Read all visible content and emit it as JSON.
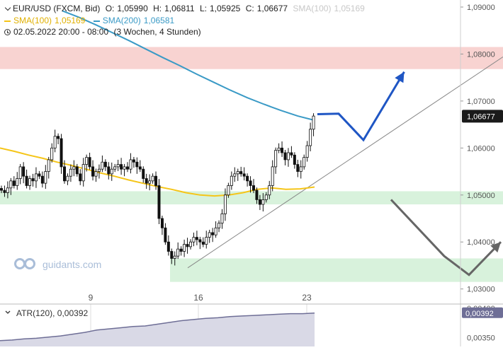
{
  "legend": {
    "symbol": "EUR/USD (FXCM, Bid)",
    "open_label": "O:",
    "open": "1,05990",
    "high_label": "H:",
    "high": "1,06811",
    "low_label": "L:",
    "low": "1,05925",
    "close_label": "C:",
    "close": "1,06677",
    "sma100_faded": "SMA(100)",
    "sma100_faded_value": "1,05169",
    "sma100_label": "SMA(100)",
    "sma100_value": "1,05169",
    "sma200_label": "SMA(200)",
    "sma200_value": "1,06581",
    "range": "02.05.2022 20:00 - 08:00",
    "duration": "(3 Wochen, 4 Stunden)"
  },
  "logo_text": "guidants.com",
  "colors": {
    "sma100": "#f5c518",
    "sma200": "#3a9ac6",
    "bull_arrow": "#1f56c4",
    "bear_arrow": "#666666",
    "resistance_zone": "#f8d3d1",
    "support_zone": "#d8f2dc",
    "candle": "#111111",
    "atr": "#6e6e96"
  },
  "icons": {
    "collapse": "chevron-down-icon",
    "time": "clock-icon",
    "logo": "guidants-logo-icon"
  },
  "chart_data": [
    {
      "type": "candlestick",
      "title": "EUR/USD (FXCM, Bid)",
      "x_tick_labels": [
        "9",
        "16",
        "23"
      ],
      "y_tick_labels": [
        "1,09000",
        "1,08000",
        "1,07000",
        "1,06000",
        "1,05000",
        "1,04000",
        "1,03000"
      ],
      "ylim": [
        1.0295,
        1.0915
      ],
      "last_price_label": "1,06677",
      "last_price": 1.06677,
      "zones": [
        {
          "name": "resistance",
          "from": 1.0768,
          "to": 1.0815
        },
        {
          "name": "support-upper",
          "from": 1.048,
          "to": 1.0508
        },
        {
          "name": "support-lower",
          "from": 1.0315,
          "to": 1.0365
        }
      ],
      "candles_close": [
        1.051,
        1.0505,
        1.0515,
        1.053,
        1.052,
        1.0535,
        1.056,
        1.054,
        1.052,
        1.0535,
        1.053,
        1.0545,
        1.054,
        1.0525,
        1.055,
        1.0575,
        1.06,
        1.0625,
        1.062,
        1.056,
        1.053,
        1.054,
        1.0555,
        1.056,
        1.0545,
        1.053,
        1.0565,
        1.058,
        1.056,
        1.054,
        1.055,
        1.0555,
        1.057,
        1.056,
        1.0545,
        1.0555,
        1.056,
        1.0565,
        1.0555,
        1.056,
        1.0555,
        1.0575,
        1.057,
        1.056,
        1.0555,
        1.0535,
        1.0525,
        1.053,
        1.054,
        1.052,
        1.045,
        1.043,
        1.04,
        1.038,
        1.0365,
        1.037,
        1.0385,
        1.038,
        1.0395,
        1.039,
        1.04,
        1.041,
        1.0405,
        1.04,
        1.0395,
        1.041,
        1.042,
        1.0415,
        1.043,
        1.044,
        1.046,
        1.05,
        1.052,
        1.054,
        1.0545,
        1.055,
        1.0545,
        1.054,
        1.053,
        1.052,
        1.051,
        1.049,
        1.048,
        1.049,
        1.05,
        1.052,
        1.056,
        1.0595,
        1.06,
        1.059,
        1.0575,
        1.059,
        1.0585,
        1.0565,
        1.055,
        1.056,
        1.058,
        1.0605,
        1.064,
        1.0668
      ],
      "sma100": [
        1.06,
        1.0593,
        1.0585,
        1.0578,
        1.057,
        1.0563,
        1.0555,
        1.0547,
        1.054,
        1.0532,
        1.0525,
        1.0518,
        1.0512,
        1.0505,
        1.05,
        1.0498,
        1.05,
        1.0505,
        1.0512,
        1.0515,
        1.0512,
        1.0513,
        1.0517
      ],
      "sma200": [
        1.0892,
        1.0878,
        1.0862,
        1.0845,
        1.0828,
        1.081,
        1.0792,
        1.0775,
        1.0757,
        1.074,
        1.0723,
        1.0707,
        1.0693,
        1.068,
        1.0668,
        1.0659
      ],
      "projection_up": [
        [
          0,
          1.0672
        ],
        [
          12,
          1.0673
        ],
        [
          26,
          1.0617
        ],
        [
          49,
          1.0762
        ]
      ],
      "projection_down": [
        [
          0,
          1.049
        ],
        [
          30,
          1.037
        ],
        [
          44,
          1.033
        ],
        [
          62,
          1.04
        ]
      ],
      "trendline": [
        [
          1.0345
        ],
        [
          1.0794
        ]
      ]
    },
    {
      "type": "line",
      "title": "ATR(120)",
      "series": [
        {
          "name": "ATR(120)",
          "value_label": "0,00392"
        }
      ],
      "y_tick_labels": [
        "0,00400",
        "0,00350"
      ],
      "ylim": [
        0.00335,
        0.00405
      ],
      "values": [
        0.00345,
        0.00346,
        0.00348,
        0.00349,
        0.00351,
        0.00353,
        0.00356,
        0.00359,
        0.00363,
        0.00365,
        0.00367,
        0.00369,
        0.0037,
        0.00373,
        0.00376,
        0.00379,
        0.00381,
        0.00383,
        0.00384,
        0.00386,
        0.00387,
        0.00388,
        0.00389,
        0.0039,
        0.00391,
        0.00391,
        0.00392
      ]
    }
  ]
}
